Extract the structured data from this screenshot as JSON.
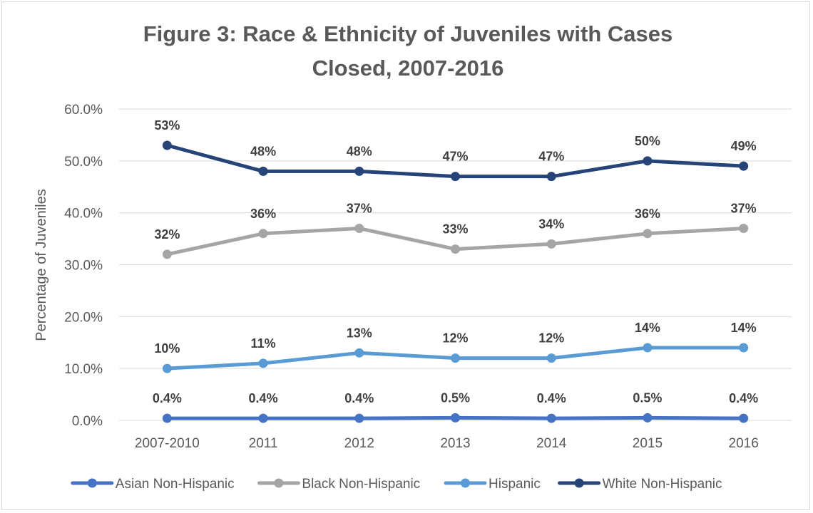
{
  "chart_data": {
    "type": "line",
    "title": [
      "Figure 3: Race & Ethnicity of Juveniles with Cases",
      "Closed, 2007-2016"
    ],
    "xlabel": "",
    "ylabel": "Percentage of Juveniles",
    "categories": [
      "2007-2010",
      "2011",
      "2012",
      "2013",
      "2014",
      "2015",
      "2016"
    ],
    "ylim": [
      0,
      60
    ],
    "yticks": [
      0,
      10,
      20,
      30,
      40,
      50,
      60
    ],
    "ytick_labels": [
      "0.0%",
      "10.0%",
      "20.0%",
      "30.0%",
      "40.0%",
      "50.0%",
      "60.0%"
    ],
    "grid": true,
    "legend_position": "bottom",
    "series": [
      {
        "name": "Asian Non-Hispanic",
        "color": "#4472c4",
        "values": [
          0.4,
          0.4,
          0.4,
          0.5,
          0.4,
          0.5,
          0.4
        ],
        "labels": [
          "0.4%",
          "0.4%",
          "0.4%",
          "0.5%",
          "0.4%",
          "0.5%",
          "0.4%"
        ]
      },
      {
        "name": "Black Non-Hispanic",
        "color": "#a5a5a5",
        "values": [
          32,
          36,
          37,
          33,
          34,
          36,
          37
        ],
        "labels": [
          "32%",
          "36%",
          "37%",
          "33%",
          "34%",
          "36%",
          "37%"
        ]
      },
      {
        "name": "Hispanic",
        "color": "#5b9bd5",
        "values": [
          10,
          11,
          13,
          12,
          12,
          14,
          14
        ],
        "labels": [
          "10%",
          "11%",
          "13%",
          "12%",
          "12%",
          "14%",
          "14%"
        ]
      },
      {
        "name": "White Non-Hispanic",
        "color": "#264478",
        "values": [
          53,
          48,
          48,
          47,
          47,
          50,
          49
        ],
        "labels": [
          "53%",
          "48%",
          "48%",
          "47%",
          "47%",
          "50%",
          "49%"
        ]
      }
    ]
  }
}
